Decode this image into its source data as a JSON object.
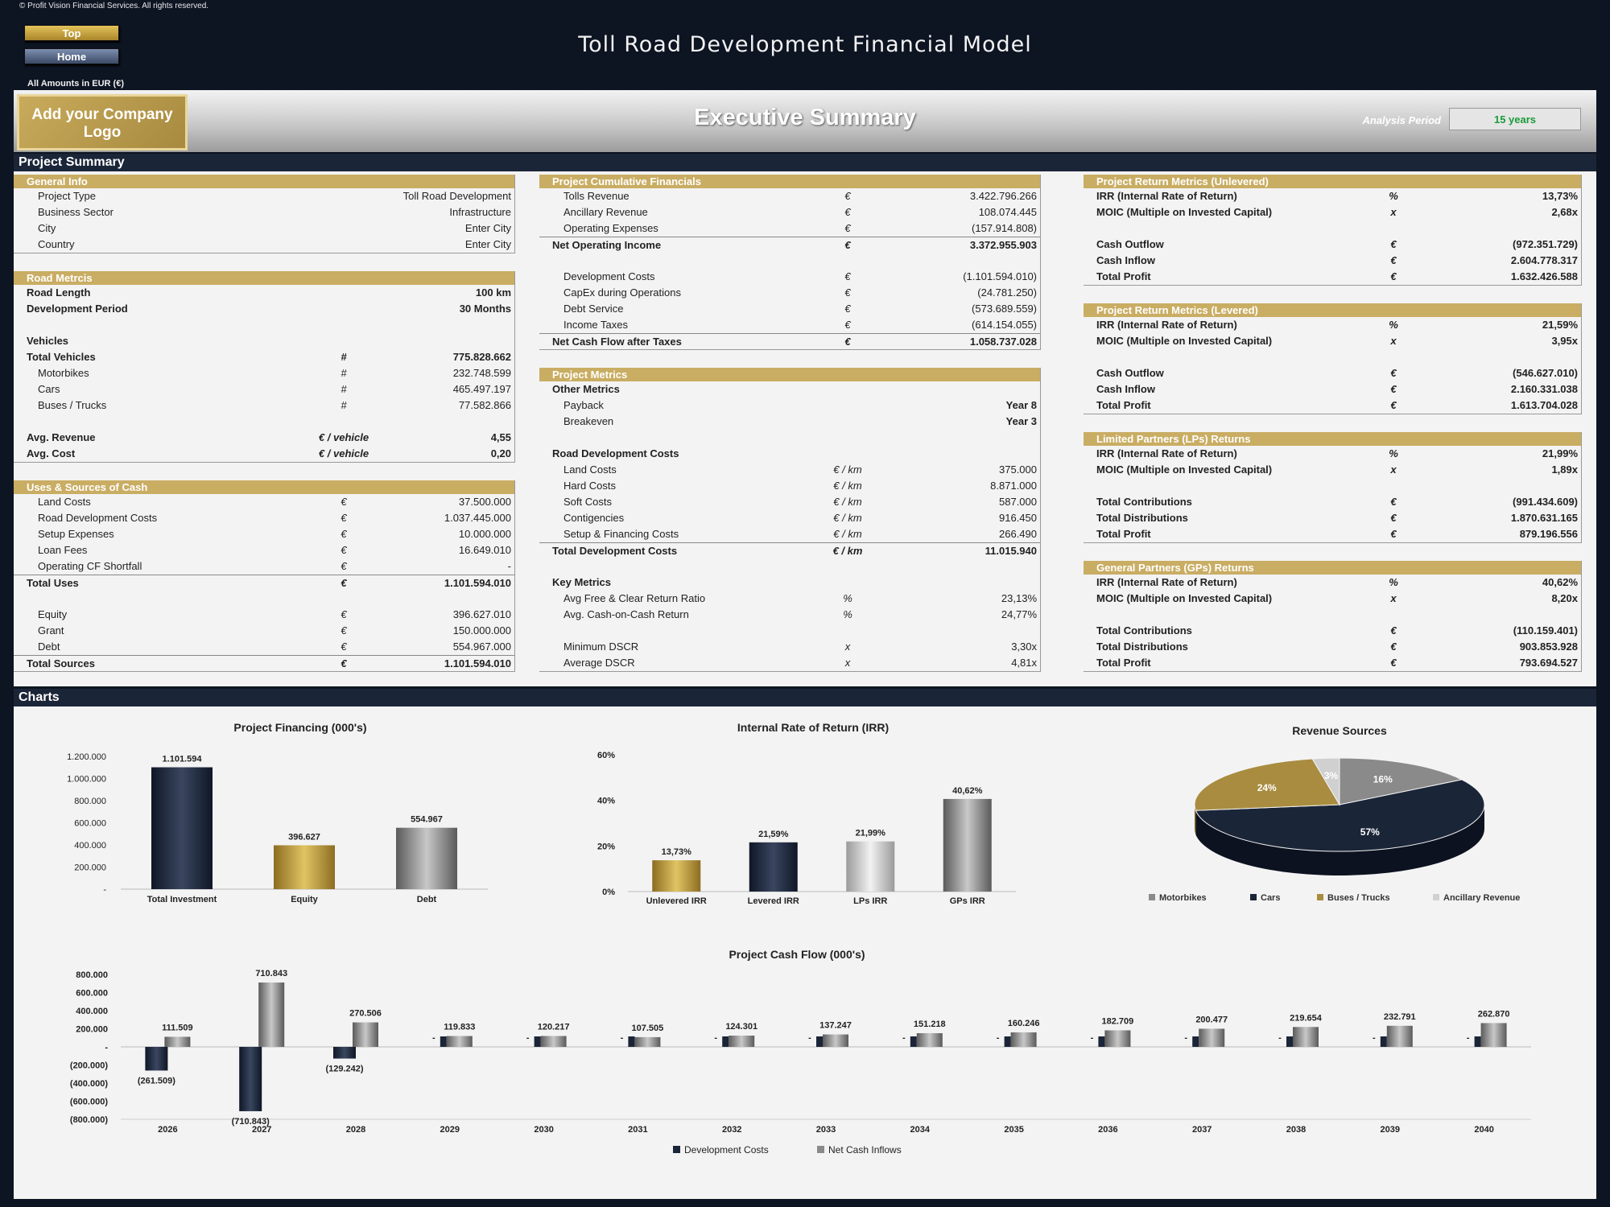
{
  "header": {
    "copyright": "© Profit Vision Financial Services. All rights reserved.",
    "top_button": "Top",
    "home_button": "Home",
    "title": "Toll Road Development Financial Model",
    "amounts_note": "All Amounts in  EUR (€)",
    "logo_text": "Add your Company Logo",
    "executive_title": "Executive Summary",
    "analysis_period_label": "Analysis Period",
    "analysis_period_value": "15 years"
  },
  "sections": {
    "project_summary": "Project Summary",
    "charts": "Charts"
  },
  "general_info": {
    "title": "General Info",
    "rows": [
      {
        "label": "Project Type",
        "unit": "",
        "value": "Toll Road Development",
        "bold": false
      },
      {
        "label": "Business Sector",
        "unit": "",
        "value": "Infrastructure",
        "bold": false
      },
      {
        "label": "City",
        "unit": "",
        "value": "Enter City",
        "bold": false
      },
      {
        "label": "Country",
        "unit": "",
        "value": "Enter City",
        "bold": false
      }
    ]
  },
  "road_metrics": {
    "title": "Road Metrcis",
    "rows": [
      {
        "label": "Road Length",
        "unit": "",
        "value": "100 km",
        "bold": true
      },
      {
        "label": "Development Period",
        "unit": "",
        "value": "30 Months",
        "bold": true
      },
      {
        "label": "",
        "unit": "",
        "value": "",
        "bold": false
      },
      {
        "label": "Vehicles",
        "unit": "",
        "value": "",
        "bold": false,
        "sub": true
      },
      {
        "label": "Total Vehicles",
        "unit": "#",
        "value": "775.828.662",
        "bold": true
      },
      {
        "label": "Motorbikes",
        "unit": "#",
        "value": "232.748.599",
        "bold": false
      },
      {
        "label": "Cars",
        "unit": "#",
        "value": "465.497.197",
        "bold": false
      },
      {
        "label": "Buses / Trucks",
        "unit": "#",
        "value": "77.582.866",
        "bold": false
      },
      {
        "label": "",
        "unit": "",
        "value": "",
        "bold": false
      },
      {
        "label": "Avg. Revenue",
        "unit": "€ / vehicle",
        "value": "4,55",
        "bold": true
      },
      {
        "label": "Avg. Cost",
        "unit": "€ / vehicle",
        "value": "0,20",
        "bold": true
      }
    ]
  },
  "uses_sources": {
    "title": "Uses & Sources of Cash",
    "rows": [
      {
        "label": "Land Costs",
        "unit": "€",
        "value": "37.500.000",
        "bold": false
      },
      {
        "label": "Road Development Costs",
        "unit": "€",
        "value": "1.037.445.000",
        "bold": false
      },
      {
        "label": "Setup Expenses",
        "unit": "€",
        "value": "10.000.000",
        "bold": false
      },
      {
        "label": "Loan Fees",
        "unit": "€",
        "value": "16.649.010",
        "bold": false
      },
      {
        "label": "Operating CF Shortfall",
        "unit": "€",
        "value": "-",
        "bold": false
      },
      {
        "label": "Total Uses",
        "unit": "€",
        "value": "1.101.594.010",
        "bold": true,
        "line": true
      },
      {
        "label": "",
        "unit": "",
        "value": "",
        "bold": false
      },
      {
        "label": "Equity",
        "unit": "€",
        "value": "396.627.010",
        "bold": false
      },
      {
        "label": "Grant",
        "unit": "€",
        "value": "150.000.000",
        "bold": false
      },
      {
        "label": "Debt",
        "unit": "€",
        "value": "554.967.000",
        "bold": false
      },
      {
        "label": "Total Sources",
        "unit": "€",
        "value": "1.101.594.010",
        "bold": true,
        "line": true
      }
    ]
  },
  "cumulative_financials": {
    "title": "Project Cumulative Financials",
    "rows": [
      {
        "label": "Tolls Revenue",
        "unit": "€",
        "value": "3.422.796.266",
        "bold": false
      },
      {
        "label": "Ancillary Revenue",
        "unit": "€",
        "value": "108.074.445",
        "bold": false
      },
      {
        "label": "Operating Expenses",
        "unit": "€",
        "value": "(157.914.808)",
        "bold": false
      },
      {
        "label": "Net Operating Income",
        "unit": "€",
        "value": "3.372.955.903",
        "bold": true,
        "line": true
      },
      {
        "label": "",
        "unit": "",
        "value": "",
        "bold": false
      },
      {
        "label": "Development Costs",
        "unit": "€",
        "value": "(1.101.594.010)",
        "bold": false
      },
      {
        "label": "CapEx during Operations",
        "unit": "€",
        "value": "(24.781.250)",
        "bold": false
      },
      {
        "label": "Debt Service",
        "unit": "€",
        "value": "(573.689.559)",
        "bold": false
      },
      {
        "label": "Income Taxes",
        "unit": "€",
        "value": "(614.154.055)",
        "bold": false
      },
      {
        "label": "Net Cash Flow after Taxes",
        "unit": "€",
        "value": "1.058.737.028",
        "bold": true,
        "line": true
      }
    ]
  },
  "project_metrics": {
    "title": "Project Metrics",
    "rows": [
      {
        "label": "Other Metrics",
        "unit": "",
        "value": "",
        "bold": false,
        "sub": true
      },
      {
        "label": "Payback",
        "unit": "",
        "value": "Year 8",
        "bold": false,
        "boldval": true
      },
      {
        "label": "Breakeven",
        "unit": "",
        "value": "Year 3",
        "bold": false,
        "boldval": true
      },
      {
        "label": "",
        "unit": "",
        "value": "",
        "bold": false
      },
      {
        "label": "Road Development Costs",
        "unit": "",
        "value": "",
        "bold": false,
        "sub": true
      },
      {
        "label": "Land Costs",
        "unit": "€ / km",
        "value": "375.000",
        "bold": false
      },
      {
        "label": "Hard Costs",
        "unit": "€ / km",
        "value": "8.871.000",
        "bold": false
      },
      {
        "label": "Soft Costs",
        "unit": "€ / km",
        "value": "587.000",
        "bold": false
      },
      {
        "label": "Contigencies",
        "unit": "€ / km",
        "value": "916.450",
        "bold": false
      },
      {
        "label": "Setup & Financing Costs",
        "unit": "€ / km",
        "value": "266.490",
        "bold": false
      },
      {
        "label": "Total Development Costs",
        "unit": "€ / km",
        "value": "11.015.940",
        "bold": true,
        "line": true
      },
      {
        "label": "",
        "unit": "",
        "value": "",
        "bold": false
      },
      {
        "label": "Key Metrics",
        "unit": "",
        "value": "",
        "bold": false,
        "sub": true
      },
      {
        "label": "Avg Free & Clear Return Ratio",
        "unit": "%",
        "value": "23,13%",
        "bold": false
      },
      {
        "label": "Avg. Cash-on-Cash Return",
        "unit": "%",
        "value": "24,77%",
        "bold": false
      },
      {
        "label": "",
        "unit": "",
        "value": "",
        "bold": false
      },
      {
        "label": "Minimum DSCR",
        "unit": "x",
        "value": "3,30x",
        "bold": false
      },
      {
        "label": "Average DSCR",
        "unit": "x",
        "value": "4,81x",
        "bold": false
      }
    ]
  },
  "unlevered": {
    "title": "Project Return Metrics (Unlevered)",
    "rows": [
      {
        "label": "IRR (Internal Rate of Return)",
        "unit": "%",
        "value": "13,73%"
      },
      {
        "label": "MOIC (Multiple on Invested Capital)",
        "unit": "x",
        "value": "2,68x"
      },
      {
        "label": "",
        "unit": "",
        "value": ""
      },
      {
        "label": "Cash Outflow",
        "unit": "€",
        "value": "(972.351.729)"
      },
      {
        "label": "Cash Inflow",
        "unit": "€",
        "value": "2.604.778.317"
      },
      {
        "label": "Total Profit",
        "unit": "€",
        "value": "1.632.426.588"
      }
    ]
  },
  "levered": {
    "title": "Project Return Metrics (Levered)",
    "rows": [
      {
        "label": "IRR (Internal Rate of Return)",
        "unit": "%",
        "value": "21,59%"
      },
      {
        "label": "MOIC (Multiple on Invested Capital)",
        "unit": "x",
        "value": "3,95x"
      },
      {
        "label": "",
        "unit": "",
        "value": ""
      },
      {
        "label": "Cash Outflow",
        "unit": "€",
        "value": "(546.627.010)"
      },
      {
        "label": "Cash Inflow",
        "unit": "€",
        "value": "2.160.331.038"
      },
      {
        "label": "Total Profit",
        "unit": "€",
        "value": "1.613.704.028"
      }
    ]
  },
  "lp_returns": {
    "title": "Limited Partners (LPs) Returns",
    "rows": [
      {
        "label": "IRR (Internal Rate of Return)",
        "unit": "%",
        "value": "21,99%"
      },
      {
        "label": "MOIC (Multiple on Invested Capital)",
        "unit": "x",
        "value": "1,89x"
      },
      {
        "label": "",
        "unit": "",
        "value": ""
      },
      {
        "label": "Total Contributions",
        "unit": "€",
        "value": "(991.434.609)"
      },
      {
        "label": "Total Distributions",
        "unit": "€",
        "value": "1.870.631.165"
      },
      {
        "label": "Total Profit",
        "unit": "€",
        "value": "879.196.556"
      }
    ]
  },
  "gp_returns": {
    "title": "General Partners (GPs) Returns",
    "rows": [
      {
        "label": "IRR (Internal Rate of Return)",
        "unit": "%",
        "value": "40,62%"
      },
      {
        "label": "MOIC (Multiple on Invested Capital)",
        "unit": "x",
        "value": "8,20x"
      },
      {
        "label": "",
        "unit": "",
        "value": ""
      },
      {
        "label": "Total Contributions",
        "unit": "€",
        "value": "(110.159.401)"
      },
      {
        "label": "Total Distributions",
        "unit": "€",
        "value": "903.853.928"
      },
      {
        "label": "Total Profit",
        "unit": "€",
        "value": "793.694.527"
      }
    ]
  },
  "colors": {
    "navy": "#1b2538",
    "gold": "#c9ad63",
    "grey": "#8a8a8a",
    "light_grey": "#cfcfcf"
  },
  "chart_data": [
    {
      "id": "financing",
      "type": "bar",
      "title": "Project Financing (000's)",
      "categories": [
        "Total Investment",
        "Equity",
        "Debt"
      ],
      "values": [
        1101594,
        396627,
        554967
      ],
      "labels": [
        "1.101.594",
        "396.627",
        "554.967"
      ],
      "yticks": [
        "1.200.000",
        "1.000.000",
        "800.000",
        "600.000",
        "400.000",
        "200.000",
        "-"
      ],
      "ylim": [
        0,
        1200000
      ]
    },
    {
      "id": "irr",
      "type": "bar",
      "title": "Internal Rate of Return (IRR)",
      "categories": [
        "Unlevered IRR",
        "Levered IRR",
        "LPs IRR",
        "GPs IRR"
      ],
      "values": [
        13.73,
        21.59,
        21.99,
        40.62
      ],
      "labels": [
        "13,73%",
        "21,59%",
        "21,99%",
        "40,62%"
      ],
      "yticks": [
        "60%",
        "40%",
        "20%",
        "0%"
      ],
      "ylim": [
        0,
        60
      ]
    },
    {
      "id": "revenue",
      "type": "pie",
      "title": "Revenue Sources",
      "categories": [
        "Motorbikes",
        "Cars",
        "Buses / Trucks",
        "Ancillary Revenue"
      ],
      "values": [
        16,
        57,
        24,
        3
      ],
      "labels": [
        "16%",
        "57%",
        "24%",
        "3%"
      ]
    },
    {
      "id": "cashflow",
      "type": "bar",
      "title": "Project Cash Flow (000's)",
      "categories": [
        "2026",
        "2027",
        "2028",
        "2029",
        "2030",
        "2031",
        "2032",
        "2033",
        "2034",
        "2035",
        "2036",
        "2037",
        "2038",
        "2039",
        "2040"
      ],
      "yticks": [
        "800.000",
        "600.000",
        "400.000",
        "200.000",
        "-",
        "(200.000)",
        "(400.000)",
        "(600.000)",
        "(800.000)"
      ],
      "ylim": [
        -800000,
        800000
      ],
      "series": [
        {
          "name": "Development Costs",
          "values": [
            -261509,
            -710843,
            -129242,
            0,
            0,
            0,
            0,
            0,
            0,
            0,
            0,
            0,
            0,
            0,
            0
          ],
          "labels": [
            "(261.509)",
            "(710.843)",
            "(129.242)",
            "-",
            "-",
            "-",
            "-",
            "-",
            "-",
            "-",
            "-",
            "-",
            "-",
            "-",
            "-"
          ]
        },
        {
          "name": "Net Cash Inflows",
          "values": [
            111509,
            710843,
            270506,
            119833,
            120217,
            107505,
            124301,
            137247,
            151218,
            160246,
            182709,
            200477,
            219654,
            232791,
            262870
          ],
          "labels": [
            "111.509",
            "710.843",
            "270.506",
            "119.833",
            "120.217",
            "107.505",
            "124.301",
            "137.247",
            "151.218",
            "160.246",
            "182.709",
            "200.477",
            "219.654",
            "232.791",
            "262.870"
          ]
        }
      ]
    }
  ]
}
